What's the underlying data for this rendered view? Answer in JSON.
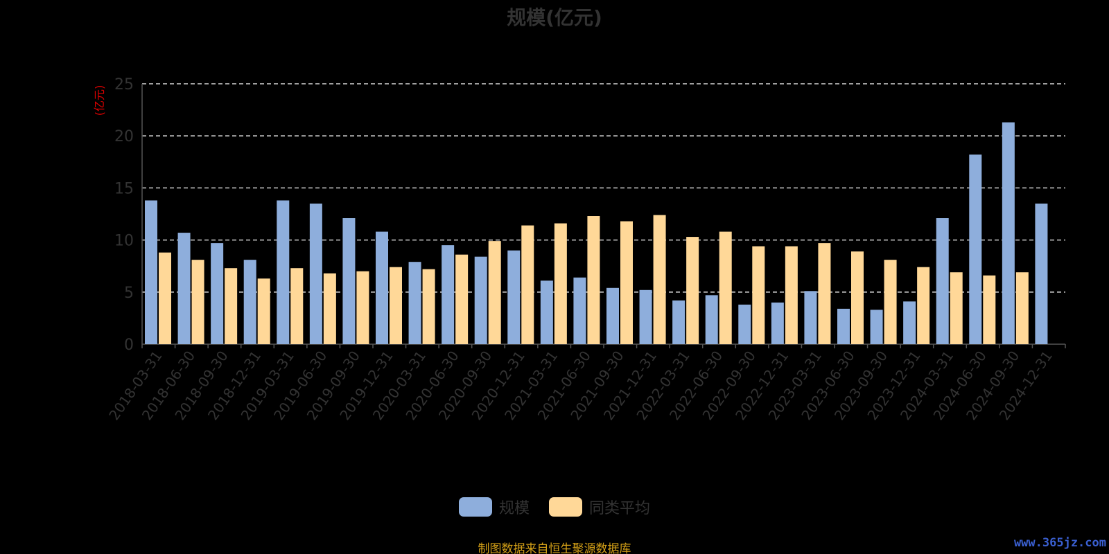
{
  "title": "规模(亿元)",
  "y_unit": "(亿元)",
  "source_note": "制图数据来自恒生聚源数据库",
  "watermark": "www.365jz.com",
  "colors": {
    "background": "#000000",
    "series_scale": "#8eaedc",
    "series_avg": "#ffd898",
    "grid": "#ffffff",
    "axis": "#555555",
    "tick_label": "#333333",
    "y_unit": "#e00000",
    "source_note": "#d4a017"
  },
  "chart_data": {
    "type": "bar",
    "title": "规模(亿元)",
    "ylabel": "(亿元)",
    "xlabel": "",
    "ylim": [
      0,
      25
    ],
    "yticks": [
      0,
      5,
      10,
      15,
      20,
      25
    ],
    "grid": true,
    "legend_position": "bottom-center",
    "categories": [
      "2018-03-31",
      "2018-06-30",
      "2018-09-30",
      "2018-12-31",
      "2019-03-31",
      "2019-06-30",
      "2019-09-30",
      "2019-12-31",
      "2020-03-31",
      "2020-06-30",
      "2020-09-30",
      "2020-12-31",
      "2021-03-31",
      "2021-06-30",
      "2021-09-30",
      "2021-12-31",
      "2022-03-31",
      "2022-06-30",
      "2022-09-30",
      "2022-12-31",
      "2023-03-31",
      "2023-06-30",
      "2023-09-30",
      "2023-12-31",
      "2024-03-31",
      "2024-06-30",
      "2024-09-30",
      "2024-12-31"
    ],
    "series": [
      {
        "name": "规模",
        "color": "#8eaedc",
        "values": [
          13.8,
          10.7,
          9.7,
          8.1,
          13.8,
          13.5,
          12.1,
          10.8,
          7.9,
          9.5,
          8.4,
          9.0,
          6.1,
          6.4,
          5.4,
          5.2,
          4.2,
          4.7,
          3.8,
          4.0,
          5.1,
          3.4,
          3.3,
          4.1,
          12.1,
          18.2,
          21.3,
          13.5
        ]
      },
      {
        "name": "同类平均",
        "color": "#ffd898",
        "values": [
          8.8,
          8.1,
          7.3,
          6.3,
          7.3,
          6.8,
          7.0,
          7.4,
          7.2,
          8.6,
          9.9,
          11.4,
          11.6,
          12.3,
          11.8,
          12.4,
          10.3,
          10.8,
          9.4,
          9.4,
          9.7,
          8.9,
          8.1,
          7.4,
          6.9,
          6.6,
          6.9,
          null
        ]
      }
    ]
  },
  "legend": {
    "items": [
      {
        "label": "规模",
        "color": "#8eaedc"
      },
      {
        "label": "同类平均",
        "color": "#ffd898"
      }
    ]
  }
}
